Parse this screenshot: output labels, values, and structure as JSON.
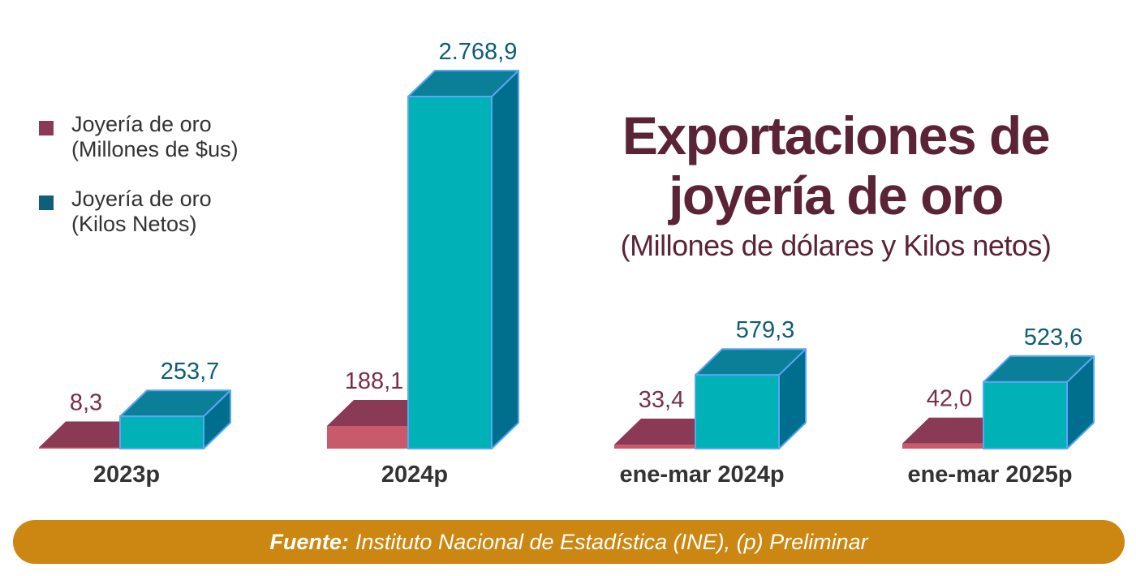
{
  "chart_data": {
    "type": "bar",
    "title": "Exportaciones de joyería de oro",
    "subtitle": "(Millones de dólares y Kilos netos)",
    "categories": [
      "2023p",
      "2024p",
      "ene-mar 2024p",
      "ene-mar 2025p"
    ],
    "series": [
      {
        "name": "Joyería de oro (Millones de $us)",
        "legend_lines": [
          "Joyería de oro",
          "(Millones de $us)"
        ],
        "color": "#8a3a55",
        "values": [
          8.3,
          188.1,
          33.4,
          42.0
        ],
        "labels": [
          "8,3",
          "188,1",
          "33,4",
          "42,0"
        ]
      },
      {
        "name": "Joyería de oro (Kilos Netos)",
        "legend_lines": [
          "Joyería de oro",
          "(Kilos Netos)"
        ],
        "color": "#0f5f7a",
        "values": [
          253.7,
          2768.9,
          579.3,
          523.6
        ],
        "labels": [
          "253,7",
          "2.768,9",
          "579,3",
          "523,6"
        ]
      }
    ],
    "bar_colors": {
      "usd_front": "#c95a6c",
      "usd_top": "#8a3a55",
      "usd_label": "#7a2d4a",
      "kg_front": "#00b1b7",
      "kg_top": "#0c7f98",
      "kg_side": "#006f8e",
      "kg_edge": "#5aa6f5",
      "kg_label": "#0e5c78"
    },
    "grid": false,
    "legend_position": "top-left"
  },
  "source": {
    "label": "Fuente:",
    "text": "Instituto Nacional de Estadística (INE), (p) Preliminar",
    "color": "#cc8612"
  }
}
